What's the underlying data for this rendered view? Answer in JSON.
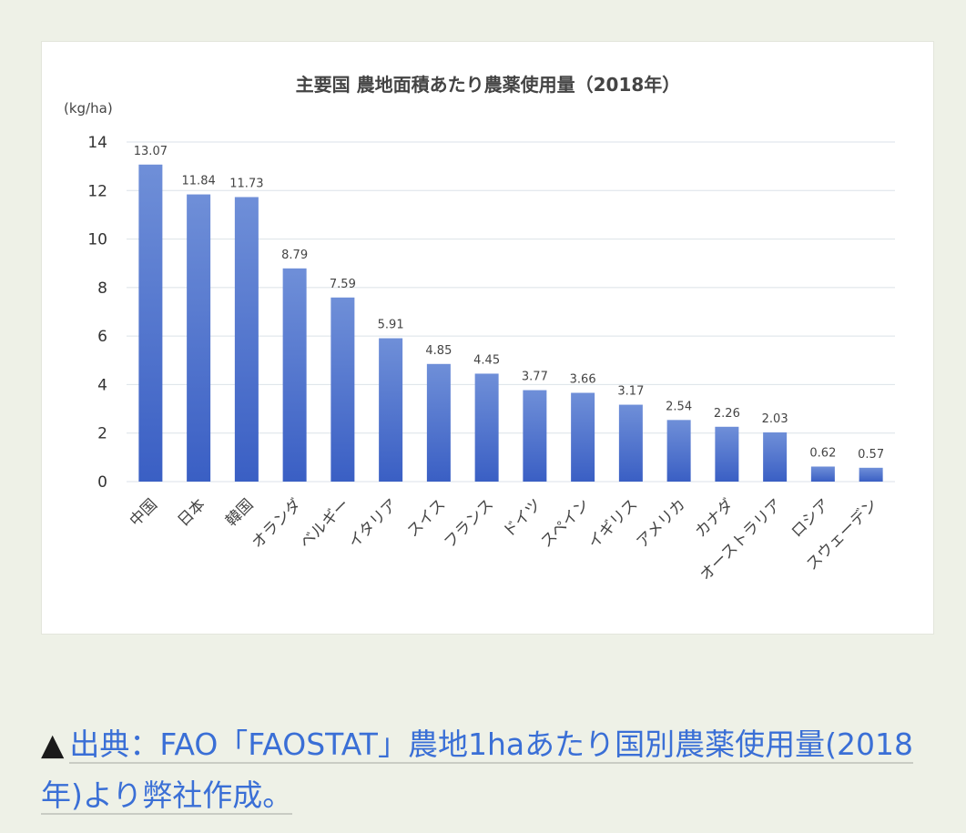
{
  "chart_data": {
    "type": "bar",
    "title": "主要国 農地面積あたり農薬使用量（2018年）",
    "ylabel": "(kg/ha)",
    "ylim": [
      0,
      14
    ],
    "yticks": [
      0,
      2,
      4,
      6,
      8,
      10,
      12,
      14
    ],
    "grid": true,
    "categories": [
      "中国",
      "日本",
      "韓国",
      "オランダ",
      "ベルギー",
      "イタリア",
      "スイス",
      "フランス",
      "ドイツ",
      "スペイン",
      "イギリス",
      "アメリカ",
      "カナダ",
      "オーストラリア",
      "ロシア",
      "スウェーデン"
    ],
    "values": [
      13.07,
      11.84,
      11.73,
      8.79,
      7.59,
      5.91,
      4.85,
      4.45,
      3.77,
      3.66,
      3.17,
      2.54,
      2.26,
      2.03,
      0.62,
      0.57
    ],
    "value_labels": [
      "13.07",
      "11.84",
      "11.73",
      "8.79",
      "7.59",
      "5.91",
      "4.85",
      "4.45",
      "3.77",
      "3.66",
      "3.17",
      "2.54",
      "2.26",
      "2.03",
      "0.62",
      "0.57"
    ],
    "colors": {
      "bar_top": "#6f8fd8",
      "bar_bottom": "#3a5fc4"
    }
  },
  "caption": {
    "marker": "▲",
    "link_text": "出典：FAO「FAOSTAT」農地1haあたり国別農薬使用量(2018年)より弊社作成。",
    "link_color": "#3a6fd6"
  }
}
